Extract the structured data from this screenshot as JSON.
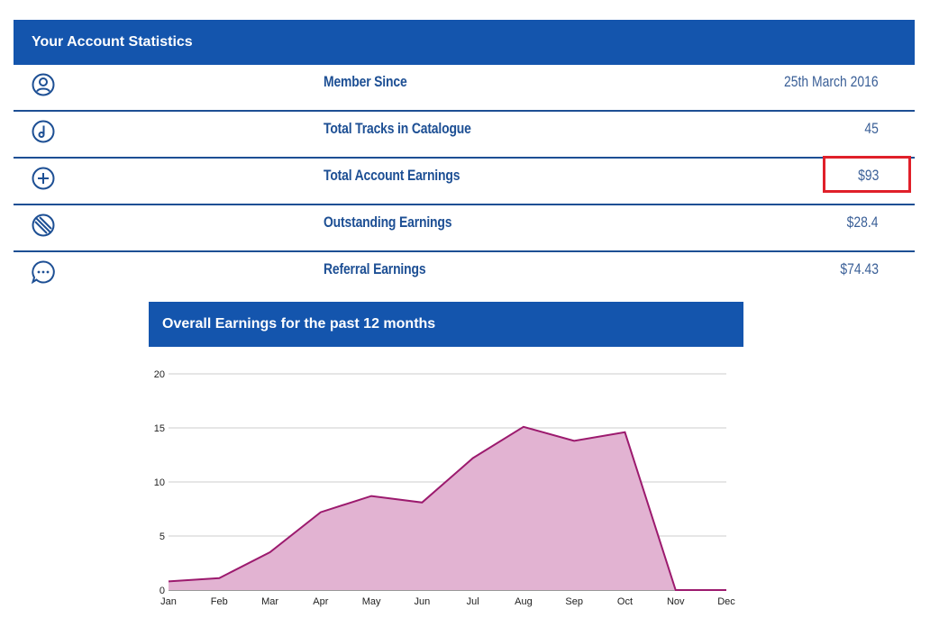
{
  "stats": {
    "title": "Your Account Statistics",
    "rows": [
      {
        "label": "Member Since",
        "value": "25th March 2016",
        "icon": "user-circle-icon"
      },
      {
        "label": "Total Tracks in Catalogue",
        "value": "45",
        "icon": "music-note-icon"
      },
      {
        "label": "Total Account Earnings",
        "value": "$93",
        "icon": "plus-circle-icon"
      },
      {
        "label": "Outstanding Earnings",
        "value": "$28.4",
        "icon": "slash-circle-icon"
      },
      {
        "label": "Referral Earnings",
        "value": "$74.43",
        "icon": "chat-bubble-icon"
      }
    ]
  },
  "colors": {
    "header_bg": "#1455ad",
    "row_text": "#1d4f94",
    "highlight": "#e0202a",
    "chart_line": "#9c1a6e",
    "chart_fill": "#e2b3d2"
  },
  "chart_title": "Overall Earnings for the past 12 months",
  "chart_data": {
    "type": "area",
    "title": "Overall Earnings for the past 12 months",
    "categories": [
      "Jan",
      "Feb",
      "Mar",
      "Apr",
      "May",
      "Jun",
      "Jul",
      "Aug",
      "Sep",
      "Oct",
      "Nov",
      "Dec"
    ],
    "values": [
      0.8,
      1.1,
      3.5,
      7.2,
      8.7,
      8.1,
      12.2,
      15.1,
      13.8,
      14.6,
      0,
      0
    ],
    "ylim": [
      0,
      20
    ],
    "yticks": [
      0,
      5,
      10,
      15,
      20
    ],
    "xlabel": "",
    "ylabel": "",
    "grid": true
  }
}
